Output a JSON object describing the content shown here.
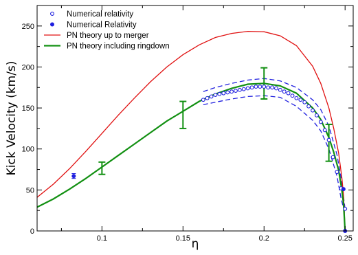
{
  "chart_data": {
    "type": "line",
    "xlabel": "η",
    "ylabel": "Kick Velocity (km/s)",
    "xlim": [
      0.06,
      0.255
    ],
    "ylim": [
      0,
      275
    ],
    "xticks": [
      0.1,
      0.15,
      0.2,
      0.25
    ],
    "xtick_labels": [
      "0.1",
      "0.15",
      "0.2",
      "0.25"
    ],
    "yticks": [
      0,
      50,
      100,
      150,
      200,
      250
    ],
    "ytick_labels": [
      "0",
      "50",
      "100",
      "150",
      "200",
      "250"
    ],
    "legend_position": "top-left",
    "grid": false,
    "legend": [
      {
        "label": "Numerical relativity",
        "marker": "open-circle",
        "color": "#1f1fdf"
      },
      {
        "label": "Numerical Relativity",
        "marker": "filled-circle",
        "color": "#1f1fdf"
      },
      {
        "label": "PN theory up to merger",
        "line": "solid",
        "color": "#e01010"
      },
      {
        "label": "PN theory including ringdown",
        "line": "solid",
        "color": "#129012"
      }
    ],
    "series": [
      {
        "name": "PN theory up to merger",
        "style": "line",
        "color": "#e01010",
        "x": [
          0.06,
          0.07,
          0.08,
          0.09,
          0.1,
          0.11,
          0.12,
          0.13,
          0.14,
          0.15,
          0.16,
          0.17,
          0.18,
          0.19,
          0.2,
          0.21,
          0.22,
          0.23,
          0.235,
          0.24,
          0.243,
          0.246,
          0.248,
          0.249,
          0.2495,
          0.25
        ],
        "y": [
          41,
          57,
          76,
          97,
          119,
          141,
          162,
          182,
          200,
          215,
          227,
          236,
          241,
          243.5,
          243,
          238,
          226,
          201,
          180,
          150,
          125,
          95,
          65,
          45,
          25,
          0
        ]
      },
      {
        "name": "PN theory including ringdown",
        "style": "line",
        "color": "#129012",
        "x": [
          0.06,
          0.07,
          0.08,
          0.09,
          0.1,
          0.11,
          0.12,
          0.13,
          0.14,
          0.15,
          0.16,
          0.17,
          0.18,
          0.19,
          0.2,
          0.21,
          0.22,
          0.23,
          0.235,
          0.24,
          0.243,
          0.246,
          0.248,
          0.249,
          0.2495,
          0.25
        ],
        "y": [
          29,
          39,
          51,
          64,
          78,
          92,
          106,
          120,
          134,
          146,
          158,
          167,
          174,
          179,
          180,
          177,
          168,
          150,
          136,
          114,
          96,
          74,
          50,
          34,
          18,
          0
        ]
      },
      {
        "name": "Numerical relativity",
        "style": "open-circle",
        "color": "#1f1fdf",
        "x": [
          0.1625,
          0.165,
          0.1675,
          0.17,
          0.1725,
          0.175,
          0.1775,
          0.18,
          0.1825,
          0.185,
          0.1875,
          0.19,
          0.1925,
          0.195,
          0.1975,
          0.2,
          0.2025,
          0.205,
          0.2075,
          0.21,
          0.2125,
          0.215,
          0.2175,
          0.22,
          0.2225,
          0.225,
          0.2275,
          0.23,
          0.2325,
          0.235,
          0.2375,
          0.24,
          0.2425,
          0.245,
          0.2475,
          0.25
        ],
        "y": [
          160,
          162,
          164,
          166,
          167,
          168,
          169,
          170,
          171,
          172,
          173,
          174,
          175,
          176,
          176,
          176,
          175,
          175,
          174,
          172,
          170,
          168,
          165,
          162,
          160,
          157,
          152,
          147,
          141,
          133,
          123,
          111,
          90,
          72,
          52,
          27
        ]
      },
      {
        "name": "Numerical relativity band",
        "style": "dashed",
        "color": "#1f1fdf",
        "x": [
          0.1625,
          0.17,
          0.18,
          0.19,
          0.2,
          0.21,
          0.22,
          0.23,
          0.235,
          0.24,
          0.245,
          0.2475,
          0.25
        ],
        "upper": [
          170,
          175,
          180,
          184,
          186,
          183,
          175,
          160,
          148,
          128,
          93,
          65,
          27
        ],
        "lower": [
          154,
          157,
          161,
          164,
          165,
          163,
          152,
          135,
          122,
          100,
          67,
          40,
          20
        ]
      },
      {
        "name": "Numerical Relativity",
        "style": "filled-circle",
        "color": "#1f1fdf",
        "x": [
          0.0826,
          0.249,
          0.25
        ],
        "y": [
          67,
          51,
          0
        ],
        "yerr": [
          3,
          0,
          0
        ]
      },
      {
        "name": "Error bars",
        "style": "errorbar",
        "color": "#129012",
        "x": [
          0.1,
          0.15,
          0.2,
          0.24
        ],
        "low": [
          69,
          125,
          161,
          85
        ],
        "high": [
          84,
          158,
          199,
          130
        ]
      }
    ]
  }
}
